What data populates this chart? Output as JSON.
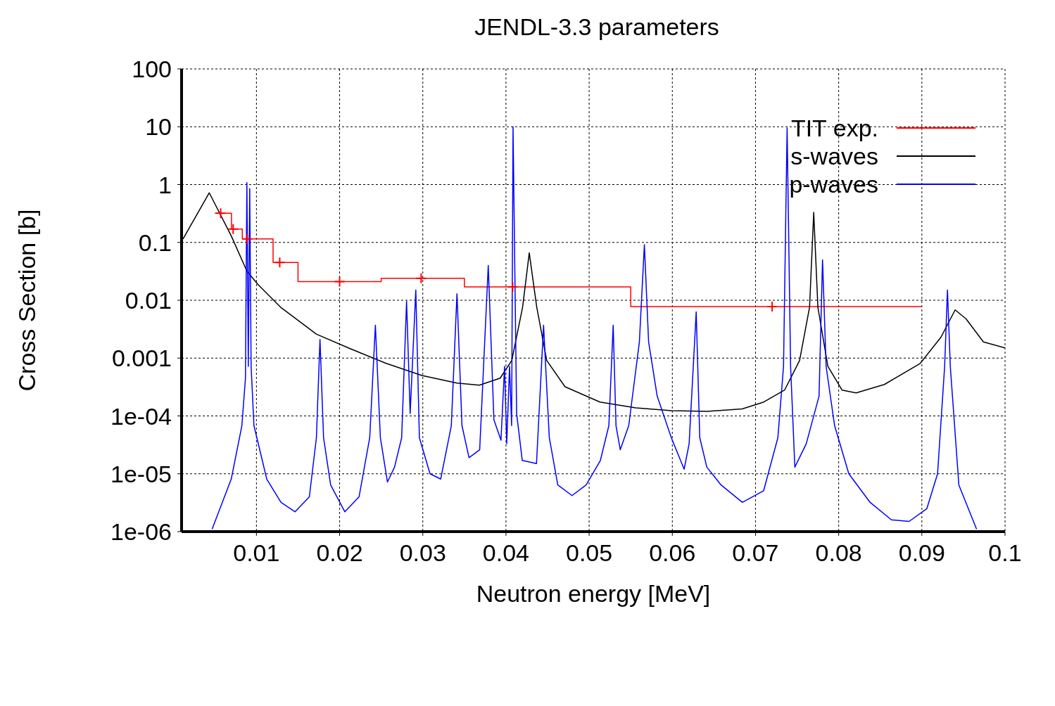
{
  "chart_data": {
    "type": "line",
    "title": "JENDL-3.3 parameters",
    "xlabel": "Neutron energy [MeV]",
    "ylabel": "Cross Section [b]",
    "log": "y",
    "grid": true,
    "legend": "top right",
    "xlim": [
      0.001,
      0.1
    ],
    "xticks": [
      0.01,
      0.02,
      0.03,
      0.04,
      0.05,
      0.06,
      0.07,
      0.08,
      0.09,
      0.1
    ],
    "ylim": [
      1e-06,
      100
    ],
    "yticks": [
      {
        "value": 1e-06,
        "label": "1e-06"
      },
      {
        "value": 1e-05,
        "label": "1e-05"
      },
      {
        "value": 0.0001,
        "label": "1e-04"
      },
      0.001,
      0.01,
      0.1,
      1,
      10,
      100
    ],
    "series": [
      {
        "name": "TIT exp.",
        "type": "step",
        "color": "#ff0000",
        "x": [
          0.005,
          0.007,
          0.0083,
          0.012,
          0.015,
          0.025,
          0.035,
          0.055,
          0.09
        ],
        "values": [
          0.32,
          0.17,
          0.115,
          0.045,
          0.021,
          0.024,
          0.017,
          0.0078,
          0.0078
        ]
      },
      {
        "type": "scatter",
        "marker": "cross",
        "color": "#ff0000",
        "x": [
          0.0057,
          0.0072,
          0.0089,
          0.0128,
          0.02,
          0.0298,
          0.0408,
          0.072
        ],
        "values": [
          0.32,
          0.17,
          0.115,
          0.045,
          0.021,
          0.024,
          0.017,
          0.0078
        ]
      },
      {
        "name": "s-waves",
        "color": "#000000",
        "x": [
          0.00117,
          0.00433,
          0.00697,
          0.00885,
          0.0102,
          0.0129,
          0.0172,
          0.0213,
          0.0256,
          0.0299,
          0.0341,
          0.0368,
          0.0393,
          0.0407,
          0.042,
          0.0428,
          0.0437,
          0.0449,
          0.0471,
          0.0513,
          0.0556,
          0.0599,
          0.0642,
          0.0684,
          0.071,
          0.0735,
          0.0753,
          0.0765,
          0.077,
          0.0775,
          0.0787,
          0.0804,
          0.0821,
          0.0855,
          0.0898,
          0.0923,
          0.094,
          0.0953,
          0.0974,
          0.1
        ],
        "values": [
          0.115,
          0.72,
          0.13,
          0.032,
          0.0186,
          0.0076,
          0.0026,
          0.00145,
          0.00081,
          0.0005,
          0.00037,
          0.00034,
          0.00045,
          0.00091,
          0.0076,
          0.066,
          0.0076,
          0.00091,
          0.00032,
          0.000174,
          0.000138,
          0.000123,
          0.00012,
          0.000132,
          0.000174,
          0.00028,
          0.00091,
          0.0076,
          0.33,
          0.0076,
          0.00072,
          0.00028,
          0.00025,
          0.00035,
          0.00081,
          0.0023,
          0.0068,
          0.0048,
          0.0019,
          0.0015
        ]
      },
      {
        "name": "p-waves",
        "color": "#0000ff",
        "x": [
          0.00467,
          0.00697,
          0.00825,
          0.00868,
          0.00885,
          0.00902,
          0.00919,
          0.00936,
          0.0097,
          0.01124,
          0.01295,
          0.01465,
          0.01636,
          0.01721,
          0.01764,
          0.01807,
          0.01892,
          0.02063,
          0.02234,
          0.02362,
          0.0243,
          0.0249,
          0.02575,
          0.0266,
          0.02746,
          0.02805,
          0.02848,
          0.02916,
          0.02959,
          0.03087,
          0.03215,
          0.03343,
          0.03411,
          0.03471,
          0.03556,
          0.03684,
          0.03787,
          0.03855,
          0.0394,
          0.03983,
          0.04009,
          0.04043,
          0.04068,
          0.04085,
          0.04128,
          0.04196,
          0.04367,
          0.04452,
          0.04521,
          0.04623,
          0.04794,
          0.04964,
          0.05135,
          0.05237,
          0.05289,
          0.05323,
          0.05374,
          0.05476,
          0.05604,
          0.05664,
          0.05715,
          0.05818,
          0.05988,
          0.06142,
          0.06202,
          0.06287,
          0.0633,
          0.06415,
          0.06586,
          0.06842,
          0.07098,
          0.07269,
          0.07337,
          0.0738,
          0.07422,
          0.07473,
          0.0761,
          0.07764,
          0.07806,
          0.07849,
          0.07951,
          0.08122,
          0.08378,
          0.08634,
          0.08847,
          0.0906,
          0.09189,
          0.09274,
          0.09308,
          0.09342,
          0.09445,
          0.09658
        ],
        "values": [
          1.1e-06,
          8.1e-06,
          6.8e-05,
          0.00045,
          1.08,
          0.00072,
          0.85,
          0.00072,
          6.8e-05,
          8.1e-06,
          3.2e-06,
          2.2e-06,
          4e-06,
          4.2e-05,
          0.0021,
          4.2e-05,
          6.4e-06,
          2.2e-06,
          4e-06,
          4.2e-05,
          0.0037,
          4.2e-05,
          7.2e-06,
          1.3e-05,
          4.2e-05,
          0.0096,
          0.00011,
          0.015,
          4.2e-05,
          1e-05,
          8.1e-06,
          6.8e-05,
          0.013,
          6.8e-05,
          1.9e-05,
          2.6e-05,
          0.04,
          8.6e-05,
          3.8e-05,
          0.00072,
          3.3e-05,
          0.00072,
          6.8e-05,
          10,
          0.00011,
          1.7e-05,
          1.5e-05,
          0.0037,
          4.2e-05,
          6.4e-06,
          4.2e-06,
          6.4e-06,
          1.7e-05,
          6.8e-05,
          0.0037,
          6.8e-05,
          2.6e-05,
          6.8e-05,
          0.0019,
          0.091,
          0.0019,
          0.00022,
          4.2e-05,
          1.2e-05,
          3.3e-05,
          0.0063,
          4.2e-05,
          1.3e-05,
          6.4e-06,
          3.2e-06,
          5.1e-06,
          4.2e-05,
          0.00072,
          9.5,
          0.00072,
          1.3e-05,
          3.3e-05,
          0.00022,
          0.05,
          0.00072,
          6.8e-05,
          1e-05,
          3.2e-06,
          1.6e-06,
          1.5e-06,
          2.5e-06,
          1e-05,
          0.00072,
          0.015,
          0.00072,
          6.4e-06,
          1.1e-06
        ]
      }
    ]
  }
}
